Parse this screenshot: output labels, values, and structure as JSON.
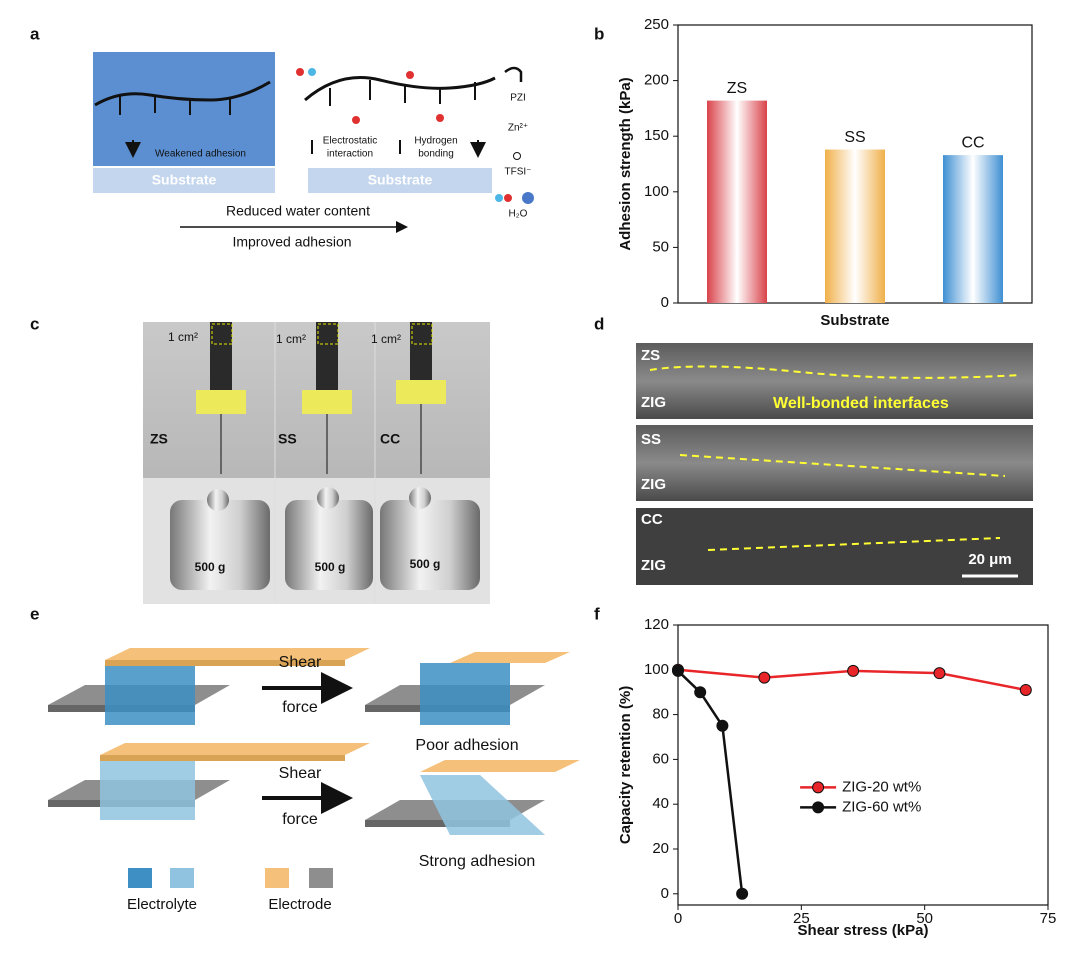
{
  "panel_labels": [
    "a",
    "b",
    "c",
    "d",
    "e",
    "f"
  ],
  "panel_a": {
    "left_label": "Weakened adhesion",
    "substrate_left": "Substrate",
    "substrate_right": "Substrate",
    "electrostatic": [
      "Electrostatic",
      "interaction"
    ],
    "hydrogen": [
      "Hydrogen",
      "bonding"
    ],
    "legend": [
      "PZI",
      "Zn²⁺",
      "TFSI⁻",
      "H₂O"
    ],
    "arrow_top": "Reduced water content",
    "arrow_bottom": "Improved adhesion"
  },
  "panel_c": {
    "area_labels": [
      "1 cm²",
      "1 cm²",
      "1 cm²"
    ],
    "samples": [
      "ZS",
      "SS",
      "CC"
    ],
    "weights": [
      "500 g",
      "500 g",
      "500 g"
    ]
  },
  "panel_d": {
    "rows": [
      {
        "top": "ZS",
        "bottom": "ZIG"
      },
      {
        "top": "SS",
        "bottom": "ZIG"
      },
      {
        "top": "CC",
        "bottom": "ZIG"
      }
    ],
    "caption": "Well-bonded interfaces",
    "scale_bar": "20 μm"
  },
  "panel_e": {
    "rows": [
      {
        "arrow_top": "Shear",
        "arrow_bottom": "force",
        "result": "Poor adhesion"
      },
      {
        "arrow_top": "Shear",
        "arrow_bottom": "force",
        "result": "Strong adhesion"
      }
    ],
    "legend": [
      "Electrolyte",
      "Electrode"
    ]
  },
  "chart_data": [
    {
      "type": "bar",
      "ylabel": "Adhesion strength (kPa)",
      "xlabel": "Substrate",
      "categories": [
        "ZS",
        "SS",
        "CC"
      ],
      "values": [
        182,
        138,
        133
      ],
      "colors": [
        "#d9434a",
        "#f0b04a",
        "#3f8fd2"
      ],
      "ylim": [
        0,
        250
      ],
      "yticks": [
        0,
        50,
        100,
        150,
        200,
        250
      ]
    },
    {
      "type": "line",
      "xlabel": "Shear stress (kPa)",
      "ylabel": "Capacity retention (%)",
      "xlim": [
        0,
        75
      ],
      "xticks": [
        0,
        25,
        50,
        75
      ],
      "ylim": [
        -5,
        120
      ],
      "yticks": [
        0,
        20,
        40,
        60,
        80,
        100,
        120
      ],
      "legend": "center-right",
      "series": [
        {
          "name": "ZIG-20 wt%",
          "color": "#e8262a",
          "x": [
            0,
            17.5,
            35.5,
            53,
            70.5
          ],
          "values": [
            100,
            96.5,
            99.5,
            98.5,
            91
          ]
        },
        {
          "name": "ZIG-60 wt%",
          "color": "#111111",
          "x": [
            0,
            4.5,
            9,
            13
          ],
          "values": [
            99.5,
            90,
            75,
            0
          ]
        }
      ]
    }
  ]
}
